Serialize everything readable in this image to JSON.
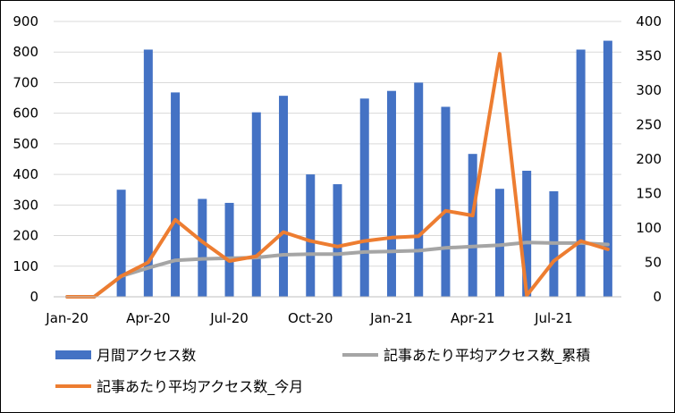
{
  "chart_data": {
    "type": "bar+line",
    "categories": [
      "2020-01",
      "2020-02",
      "2020-03",
      "2020-04",
      "2020-05",
      "2020-06",
      "2020-07",
      "2020-08",
      "2020-09",
      "2020-10",
      "2020-11",
      "2020-12",
      "2021-01",
      "2021-02",
      "2021-03",
      "2021-04",
      "2021-05",
      "2021-06",
      "2021-07",
      "2021-08",
      "2021-09"
    ],
    "x_tick_labels": [
      {
        "index": 0,
        "label": "Jan-20"
      },
      {
        "index": 3,
        "label": "Apr-20"
      },
      {
        "index": 6,
        "label": "Jul-20"
      },
      {
        "index": 9,
        "label": "Oct-20"
      },
      {
        "index": 12,
        "label": "Jan-21"
      },
      {
        "index": 15,
        "label": "Apr-21"
      },
      {
        "index": 18,
        "label": "Jul-21"
      }
    ],
    "y_left": {
      "min": 0,
      "max": 900,
      "step": 100,
      "ticks": [
        "0",
        "100",
        "200",
        "300",
        "400",
        "500",
        "600",
        "700",
        "800",
        "900"
      ]
    },
    "y_right": {
      "min": 0,
      "max": 400,
      "step": 50,
      "ticks": [
        "0",
        "50",
        "100",
        "150",
        "200",
        "250",
        "300",
        "350",
        "400"
      ]
    },
    "grid": true,
    "legend_position": "bottom",
    "series": [
      {
        "name": "月間アクセス数",
        "kind": "bar",
        "axis": "left",
        "color": "#4472C4",
        "values": [
          0,
          0,
          350,
          808,
          668,
          320,
          307,
          603,
          657,
          400,
          368,
          648,
          673,
          700,
          621,
          467,
          353,
          412,
          345,
          808,
          837
        ]
      },
      {
        "name": "記事あたり平均アクセス数_累積",
        "kind": "line",
        "axis": "right",
        "color": "#A5A5A5",
        "values": [
          0,
          0,
          30,
          42,
          53,
          55,
          56,
          57,
          61,
          62,
          62,
          65,
          66,
          67,
          71,
          73,
          75,
          79,
          78,
          78,
          76
        ]
      },
      {
        "name": "記事あたり平均アクセス数_今月",
        "kind": "line",
        "axis": "right",
        "color": "#ED7D31",
        "values": [
          0,
          0,
          30,
          50,
          112,
          80,
          52,
          59,
          94,
          81,
          73,
          81,
          86,
          88,
          125,
          118,
          353,
          2,
          52,
          81,
          69
        ]
      }
    ]
  }
}
